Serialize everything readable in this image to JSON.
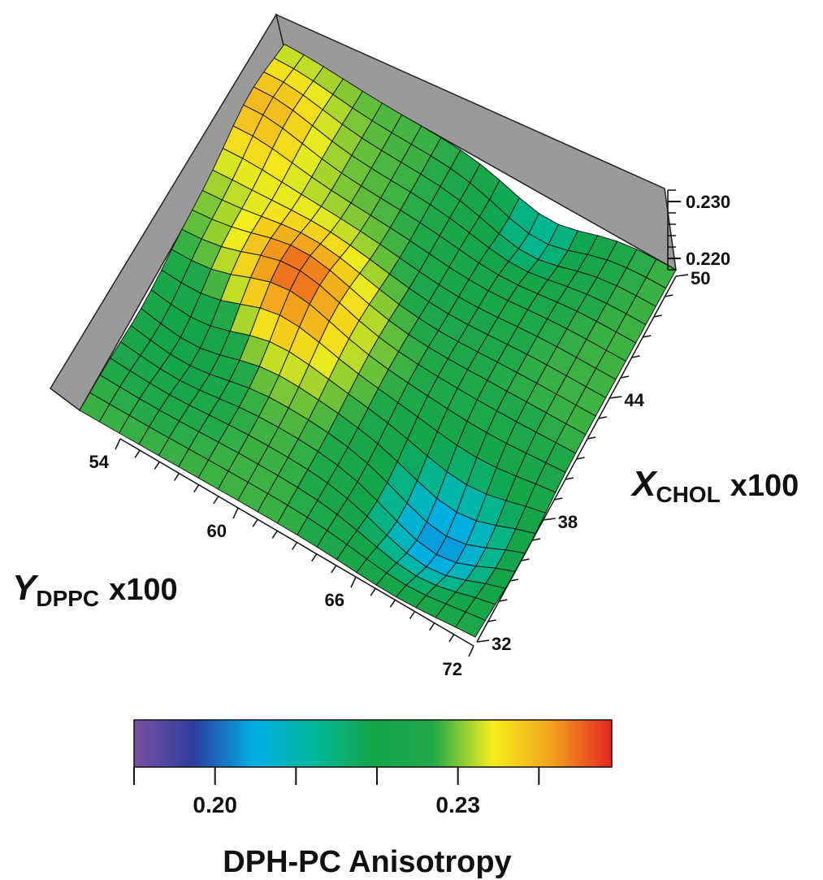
{
  "chart_data": {
    "type": "heatmap",
    "subtype": "3d-surface",
    "x_axis": {
      "name": "X",
      "subscript": "CHOL",
      "unit": "x100",
      "ticks": [
        "32",
        "38",
        "44",
        "50"
      ],
      "range": [
        32,
        50
      ]
    },
    "y_axis": {
      "name": "Y",
      "subscript": "DPPC",
      "unit": "x100",
      "ticks": [
        "54",
        "60",
        "66",
        "72"
      ],
      "range": [
        54,
        72
      ]
    },
    "z_axis": {
      "ticks": [
        "0.220",
        "0.230"
      ],
      "range": [
        0.218,
        0.232
      ]
    },
    "colorbar": {
      "title": "DPH-PC Anisotropy",
      "range": [
        0.19,
        0.249
      ],
      "tick_values": [
        0.19,
        0.2,
        0.21,
        0.22,
        0.23,
        0.24
      ],
      "tick_labels": [
        {
          "value": 0.2,
          "text": "0.20"
        },
        {
          "value": 0.23,
          "text": "0.23"
        }
      ],
      "colors": [
        "#7a4fa3",
        "#2c3e9e",
        "#00aee8",
        "#00b89a",
        "#13a548",
        "#1fa84a",
        "#f4ee1c",
        "#f2a21d",
        "#e52520"
      ]
    },
    "grid": {
      "rows": 20,
      "cols": 20,
      "note": "rows run from X_CHOL=50 (r=0) to 32 (r=19); cols run from Y_DPPC=54 (c=0) to 72 (c=19)"
    }
  }
}
